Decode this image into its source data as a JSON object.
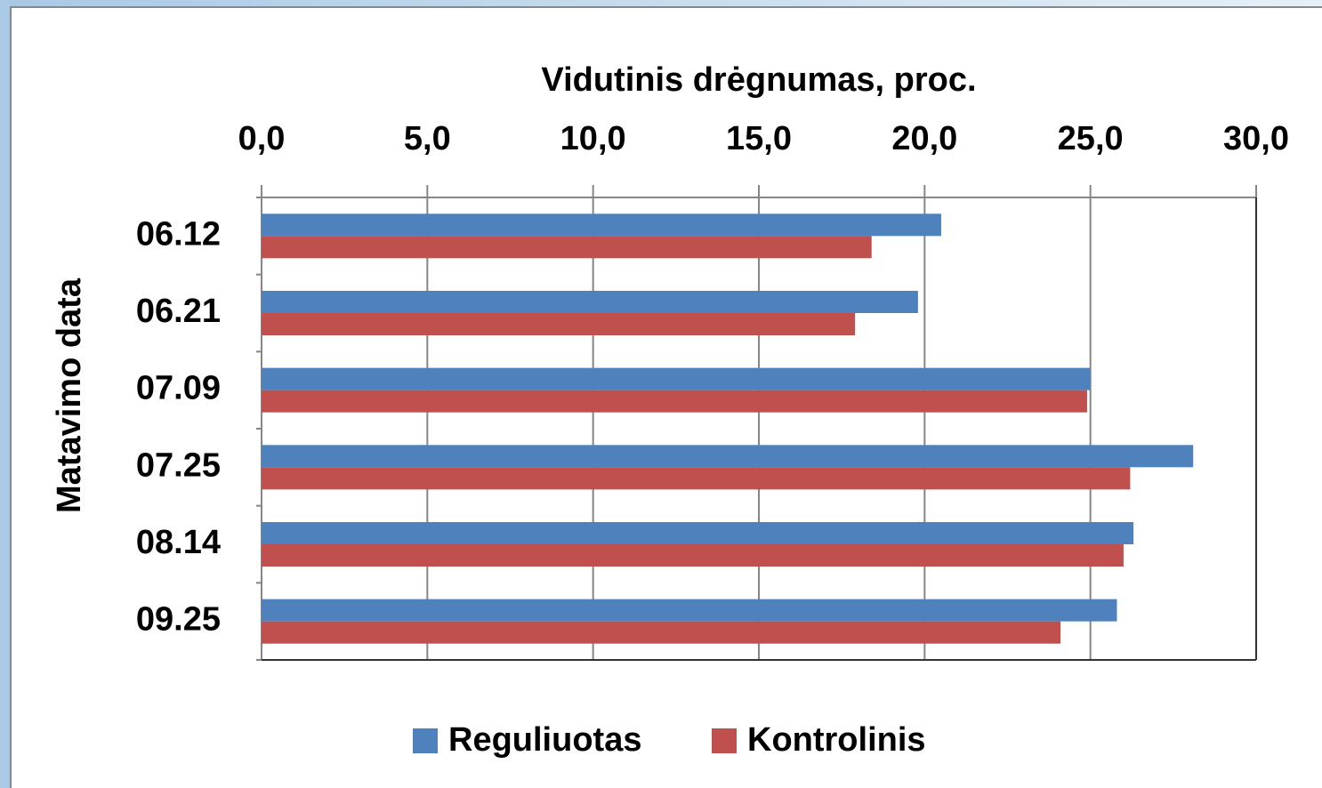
{
  "chart_data": {
    "type": "bar",
    "orientation": "horizontal",
    "x_label": "Vidutinis drėgnumas, proc.",
    "y_label": "Matavimo data",
    "categories": [
      "06.12",
      "06.21",
      "07.09",
      "07.25",
      "08.14",
      "09.25"
    ],
    "series": [
      {
        "name": "Reguliuotas",
        "color": "#4f81bd",
        "values": [
          20.5,
          19.8,
          25.0,
          28.1,
          26.3,
          25.8
        ]
      },
      {
        "name": "Kontrolinis",
        "color": "#c0504d",
        "values": [
          18.4,
          17.9,
          24.9,
          26.2,
          26.0,
          24.1
        ]
      }
    ],
    "xlim": [
      0,
      30
    ],
    "xticks": [
      {
        "value": 0,
        "label": "0,0"
      },
      {
        "value": 5,
        "label": "5,0"
      },
      {
        "value": 10,
        "label": "10,0"
      },
      {
        "value": 15,
        "label": "15,0"
      },
      {
        "value": 20,
        "label": "20,0"
      },
      {
        "value": 25,
        "label": "25,0"
      },
      {
        "value": 30,
        "label": "30,0"
      }
    ],
    "grid": true,
    "legend": "bottom"
  }
}
